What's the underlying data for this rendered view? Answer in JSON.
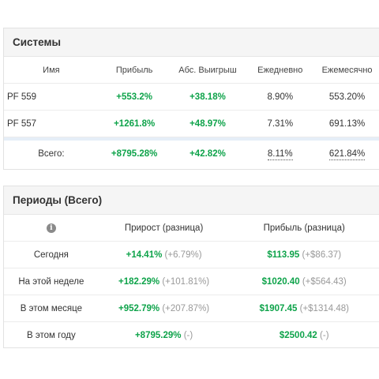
{
  "systems": {
    "title": "Системы",
    "columns": [
      "Имя",
      "Прибыль",
      "Абс. Выигрыш",
      "Ежедневно",
      "Ежемесячно"
    ],
    "rows": [
      {
        "name": "PF 559",
        "profit": "+553.2%",
        "abs_gain": "+38.18%",
        "daily": "8.90%",
        "monthly": "553.20%"
      },
      {
        "name": "PF 557",
        "profit": "+1261.8%",
        "abs_gain": "+48.97%",
        "daily": "7.31%",
        "monthly": "691.13%"
      }
    ],
    "total": {
      "label": "Всего:",
      "profit": "+8795.28%",
      "abs_gain": "+42.82%",
      "daily": "8.11%",
      "monthly": "621.84%"
    }
  },
  "periods": {
    "title": "Периоды (Всего)",
    "info_icon": "info-icon",
    "columns": [
      "Прирост (разница)",
      "Прибыль (разница)"
    ],
    "rows": [
      {
        "label": "Сегодня",
        "growth": "+14.41%",
        "growth_diff": "(+6.79%)",
        "profit": "$113.95",
        "profit_diff": "(+$86.37)"
      },
      {
        "label": "На этой неделе",
        "growth": "+182.29%",
        "growth_diff": "(+101.81%)",
        "profit": "$1020.40",
        "profit_diff": "(+$564.43)"
      },
      {
        "label": "В этом месяце",
        "growth": "+952.79%",
        "growth_diff": "(+207.87%)",
        "profit": "$1907.45",
        "profit_diff": "(+$1314.48)"
      },
      {
        "label": "В этом году",
        "growth": "+8795.29%",
        "growth_diff": "(-)",
        "profit": "$2500.42",
        "profit_diff": "(-)"
      }
    ]
  },
  "colors": {
    "positive": "#0ea34a",
    "muted": "#999999",
    "header_bg": "#f5f5f5",
    "total_separator": "#e5eef7"
  }
}
